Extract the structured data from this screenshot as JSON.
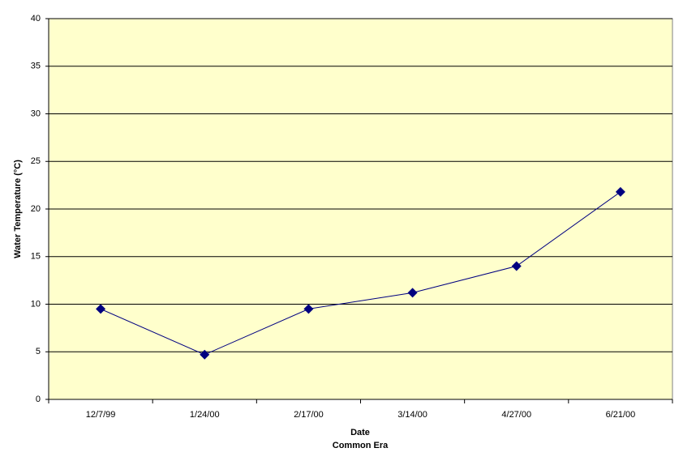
{
  "chart_data": {
    "type": "line",
    "categories": [
      "12/7/99",
      "1/24/00",
      "2/17/00",
      "3/14/00",
      "4/27/00",
      "6/21/00"
    ],
    "series": [
      {
        "name": "Water Temperature",
        "color": "#000080",
        "values": [
          9.5,
          4.7,
          9.5,
          11.2,
          14.0,
          21.8
        ]
      }
    ],
    "x_label": "Date",
    "x_sublabel": "Common Era",
    "y_label": "Water Temperature (°C)",
    "ylim": [
      0,
      40
    ],
    "yticks": [
      0,
      5,
      10,
      15,
      20,
      25,
      30,
      35,
      40
    ],
    "grid": true,
    "plot_background": "#FFFFCC"
  }
}
